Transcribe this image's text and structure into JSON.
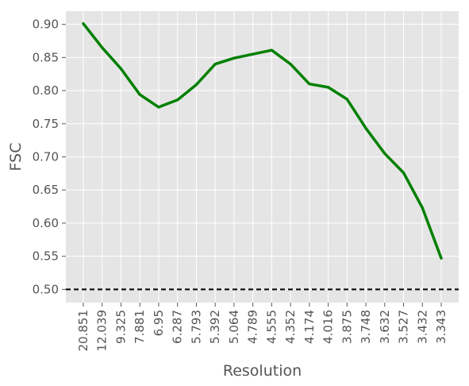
{
  "chart_data": {
    "type": "line",
    "xlabel": "Resolution",
    "ylabel": "FSC",
    "categories": [
      "20.851",
      "12.039",
      "9.325",
      "7.881",
      "6.95",
      "6.287",
      "5.793",
      "5.392",
      "5.064",
      "4.789",
      "4.555",
      "4.352",
      "4.174",
      "4.016",
      "3.875",
      "3.748",
      "3.632",
      "3.527",
      "3.432",
      "3.343"
    ],
    "series": [
      {
        "values": [
          0.901,
          0.865,
          0.833,
          0.794,
          0.775,
          0.786,
          0.809,
          0.84,
          0.849,
          0.855,
          0.861,
          0.84,
          0.81,
          0.805,
          0.787,
          0.743,
          0.705,
          0.676,
          0.623,
          0.547
        ],
        "color": "#008000",
        "style": "solid"
      }
    ],
    "threshold": {
      "value": 0.5,
      "color": "#000000",
      "style": "dashed"
    },
    "ylim": [
      0.48,
      0.92
    ],
    "yticks": [
      "0.50",
      "0.55",
      "0.60",
      "0.65",
      "0.70",
      "0.75",
      "0.80",
      "0.85",
      "0.90"
    ],
    "grid": true,
    "background": "#e5e5e5",
    "grid_color": "#ffffff"
  }
}
